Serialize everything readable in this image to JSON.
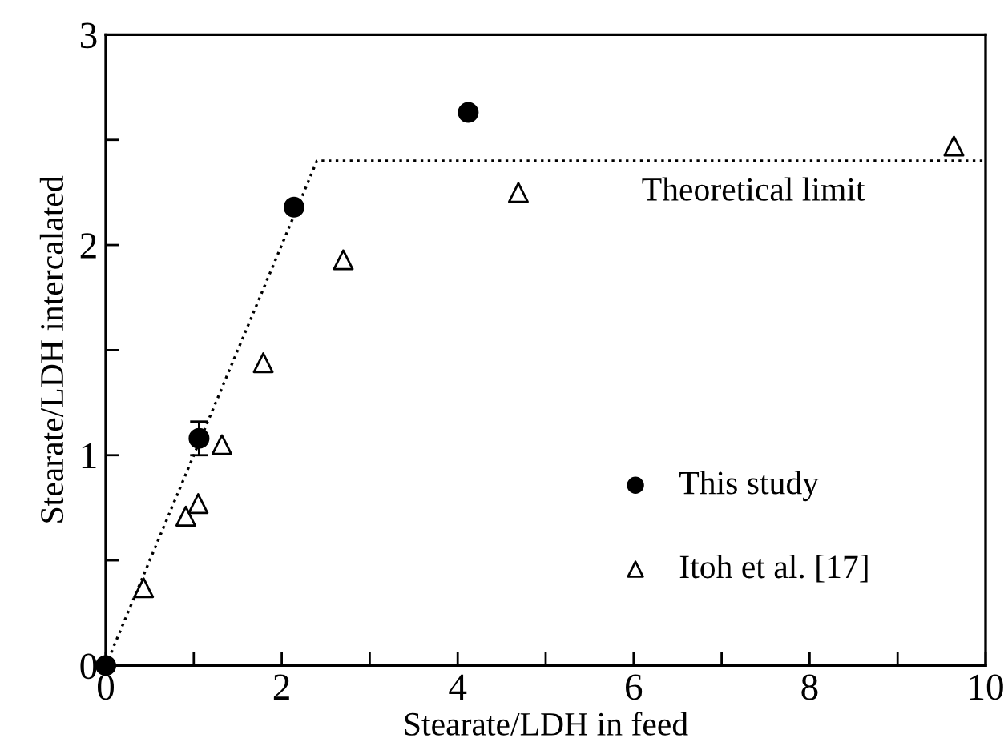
{
  "chart_data": {
    "type": "scatter",
    "xlabel": "Stearate/LDH in feed",
    "ylabel": "Stearate/LDH intercalated",
    "xlim": [
      0,
      10
    ],
    "ylim": [
      0,
      3
    ],
    "xticks": [
      0,
      {
        "value": 1,
        "label": null
      },
      2,
      {
        "value": 3,
        "label": null
      },
      4,
      {
        "value": 5,
        "label": null
      },
      6,
      {
        "value": 7,
        "label": null
      },
      8,
      {
        "value": 9,
        "label": null
      },
      10
    ],
    "yticks": [
      0,
      {
        "value": 0.5,
        "label": null
      },
      1,
      {
        "value": 1.5,
        "label": null
      },
      2,
      {
        "value": 2.5,
        "label": null
      },
      3
    ],
    "grid": false,
    "legend": "bottom right",
    "series": [
      {
        "type": "line",
        "color": "#000000",
        "marker": "none",
        "line_style": "dotted",
        "x": [
          0,
          2.4,
          10
        ],
        "values": [
          0,
          2.4,
          2.4
        ]
      },
      {
        "name": "This study",
        "color": "#000000",
        "marker": "circle",
        "x": [
          0,
          1.06,
          2.14,
          4.12
        ],
        "values": [
          0,
          1.08,
          2.18,
          2.63
        ],
        "errors": [
          null,
          0.08,
          null,
          null
        ]
      },
      {
        "name": "Itoh et al. [17]",
        "color": "#000000",
        "marker": "triangle",
        "x": [
          0.43,
          0.91,
          1.05,
          1.32,
          1.79,
          2.7,
          4.69,
          9.64
        ],
        "values": [
          0.37,
          0.71,
          0.77,
          1.05,
          1.44,
          1.93,
          2.25,
          2.47
        ]
      }
    ],
    "annotations": [
      "Theoretical limit"
    ]
  }
}
